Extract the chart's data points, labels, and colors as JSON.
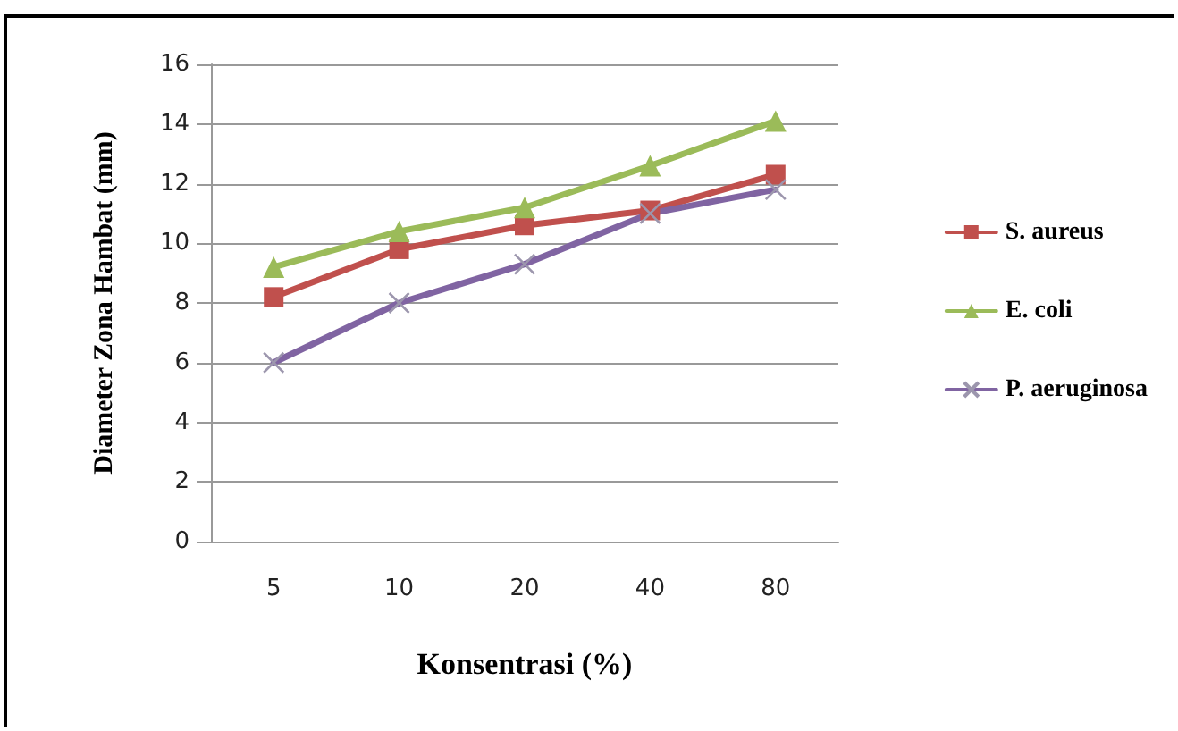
{
  "chart_data": {
    "type": "line",
    "xlabel": "Konsentrasi (%)",
    "ylabel": "Diameter Zona Hambat (mm)",
    "categories": [
      "5",
      "10",
      "20",
      "40",
      "80"
    ],
    "series": [
      {
        "name": "S. aureus",
        "color": "#c0504d",
        "marker": "square",
        "values": [
          8.2,
          9.8,
          10.6,
          11.1,
          12.3
        ]
      },
      {
        "name": "E. coli",
        "color": "#9bbb59",
        "marker": "triangle",
        "values": [
          9.2,
          10.4,
          11.2,
          12.6,
          14.1
        ]
      },
      {
        "name": "P. aeruginosa",
        "color": "#8064a2",
        "marker": "cross",
        "values": [
          6.0,
          8.0,
          9.3,
          11.0,
          11.8
        ]
      }
    ],
    "ylim": [
      0,
      16
    ],
    "yticks": [
      0,
      2,
      4,
      6,
      8,
      10,
      12,
      14,
      16
    ],
    "grid": "y",
    "legend": "right"
  }
}
